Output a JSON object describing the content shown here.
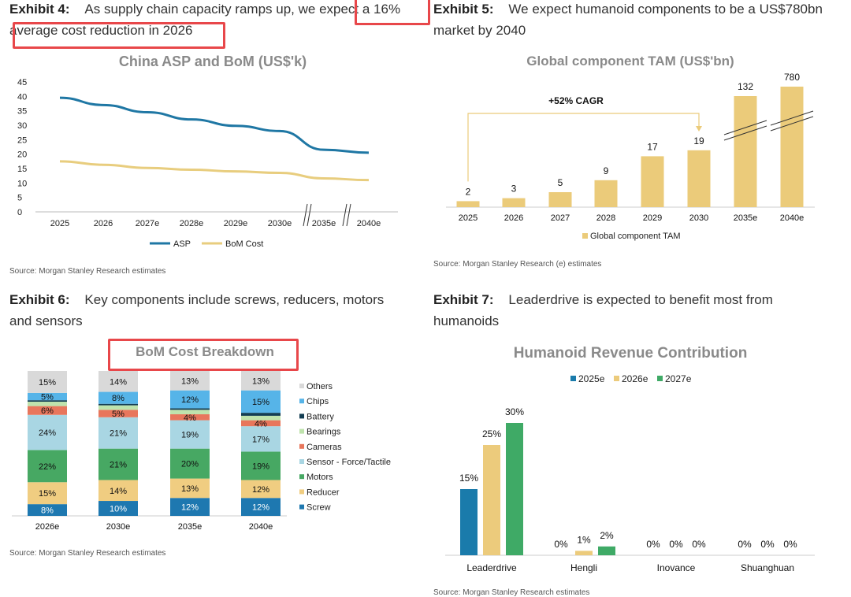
{
  "exhibits": {
    "e4": {
      "label": "Exhibit 4:",
      "text": "As supply chain capacity ramps up, we expect a 16%",
      "text2": "average cost reduction in 2026",
      "source": "Source: Morgan Stanley Research estimates"
    },
    "e5": {
      "label": "Exhibit 5:",
      "text": "We expect humanoid components to be a US$780bn",
      "text2": "market by 2040",
      "source": "Source: Morgan Stanley Research (e) estimates"
    },
    "e6": {
      "label": "Exhibit 6:",
      "text": "Key components include screws, reducers, motors",
      "text2": "and sensors",
      "source": "Source: Morgan Stanley Research estimates"
    },
    "e7": {
      "label": "Exhibit 7:",
      "text": "Leaderdrive is expected to benefit most from",
      "text2": "humanoids",
      "source": "Source: Morgan Stanley Research estimates"
    }
  },
  "colors": {
    "asp": "#1f77a4",
    "bom": "#e8cd7e",
    "tam": "#ebcb7a",
    "highlight": "#e8474a",
    "y2025": "#1a7bab",
    "y2026": "#eccb7c",
    "y2027": "#3faa66"
  },
  "chart_data": [
    {
      "id": "china-asp-bom",
      "type": "line",
      "title": "China ASP and BoM (US$'k)",
      "categories": [
        "2025",
        "2026",
        "2027e",
        "2028e",
        "2029e",
        "2030e",
        "2035e",
        "2040e"
      ],
      "series": [
        {
          "name": "ASP",
          "values": [
            39.5,
            37.0,
            34.5,
            32.0,
            29.8,
            28.0,
            21.5,
            20.5
          ]
        },
        {
          "name": "BoM Cost",
          "values": [
            17.5,
            16.3,
            15.2,
            14.6,
            14.0,
            13.5,
            11.6,
            11.0
          ]
        }
      ],
      "yticks": [
        0,
        5,
        10,
        15,
        20,
        25,
        30,
        35,
        40,
        45
      ],
      "ylim": [
        0,
        45
      ],
      "axis_breaks": [
        "2030e-2035e",
        "2035e-2040e"
      ],
      "legend": [
        "ASP",
        "BoM Cost"
      ],
      "legend_position": "bottom"
    },
    {
      "id": "global-component-tam",
      "type": "bar",
      "title": "Global component TAM (US$'bn)",
      "categories": [
        "2025",
        "2026",
        "2027",
        "2028",
        "2029",
        "2030",
        "2035e",
        "2040e"
      ],
      "values": [
        2,
        3,
        5,
        9,
        17,
        19,
        132,
        780
      ],
      "value_labels": [
        "2",
        "3",
        "5",
        "9",
        "17",
        "19",
        "132",
        "780"
      ],
      "annotation": "+52% CAGR",
      "axis_break_bars": [
        "2035e",
        "2040e"
      ],
      "legend": [
        "Global component TAM"
      ],
      "legend_position": "bottom"
    },
    {
      "id": "bom-cost-breakdown",
      "type": "bar",
      "stacked": true,
      "percent": true,
      "title": "BoM Cost Breakdown",
      "categories": [
        "2026e",
        "2030e",
        "2035e",
        "2040e"
      ],
      "series": [
        {
          "name": "Screw",
          "color": "#1e78b0",
          "values": [
            8,
            10,
            12,
            12
          ]
        },
        {
          "name": "Reducer",
          "color": "#f0cd81",
          "values": [
            15,
            14,
            13,
            12
          ]
        },
        {
          "name": "Motors",
          "color": "#47a863",
          "values": [
            22,
            21,
            20,
            19
          ]
        },
        {
          "name": "Sensor - Force/Tactile",
          "color": "#a9d6e3",
          "values": [
            24,
            21,
            19,
            17
          ]
        },
        {
          "name": "Cameras",
          "color": "#e8765c",
          "values": [
            6,
            5,
            4,
            4
          ]
        },
        {
          "name": "Bearings",
          "color": "#bfe3ad",
          "values": [
            3,
            3,
            3,
            3
          ]
        },
        {
          "name": "Battery",
          "color": "#133d52",
          "values": [
            1,
            1,
            1,
            2
          ]
        },
        {
          "name": "Chips",
          "color": "#56b4e8",
          "values": [
            5,
            8,
            12,
            15
          ]
        },
        {
          "name": "Others",
          "color": "#d9d9d9",
          "values": [
            15,
            14,
            13,
            13
          ]
        }
      ],
      "data_labels": {
        "Screw": [
          "8%",
          "10%",
          "12%",
          "12%"
        ],
        "Reducer": [
          "15%",
          "14%",
          "13%",
          "12%"
        ],
        "Motors": [
          "22%",
          "21%",
          "20%",
          "19%"
        ],
        "Sensor - Force/Tactile": [
          "24%",
          "21%",
          "19%",
          "17%"
        ],
        "Cameras": [
          "6%",
          "5%",
          "4%",
          "4%"
        ],
        "Chips": [
          "5%",
          "8%",
          "12%",
          "15%"
        ],
        "Others": [
          "15%",
          "14%",
          "13%",
          "13%"
        ]
      },
      "legend": [
        "Others",
        "Chips",
        "Battery",
        "Bearings",
        "Cameras",
        "Sensor - Force/Tactile",
        "Motors",
        "Reducer",
        "Screw"
      ],
      "legend_position": "right"
    },
    {
      "id": "humanoid-revenue-contribution",
      "type": "bar",
      "title": "Humanoid Revenue Contribution",
      "categories": [
        "Leaderdrive",
        "Hengli",
        "Inovance",
        "Shuanghuan"
      ],
      "series": [
        {
          "name": "2025e",
          "values": [
            15,
            0,
            0,
            0
          ],
          "labels": [
            "15%",
            "0%",
            "0%",
            "0%"
          ]
        },
        {
          "name": "2026e",
          "values": [
            25,
            1,
            0,
            0
          ],
          "labels": [
            "25%",
            "1%",
            "0%",
            "0%"
          ]
        },
        {
          "name": "2027e",
          "values": [
            30,
            2,
            0,
            0
          ],
          "labels": [
            "30%",
            "2%",
            "0%",
            "0%"
          ]
        }
      ],
      "ylim": [
        0,
        35
      ],
      "legend_position": "top"
    }
  ]
}
